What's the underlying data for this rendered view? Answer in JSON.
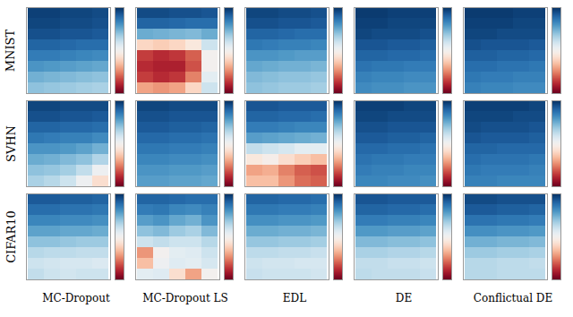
{
  "chart_data": {
    "type": "heatmap",
    "tick_labels": false,
    "rows": [
      "MNIST",
      "SVHN",
      "CIFAR10"
    ],
    "columns": [
      "MC-Dropout",
      "MC-Dropout LS",
      "EDL",
      "DE",
      "Conflictual DE"
    ],
    "colorbar": {
      "range": [
        0,
        1
      ]
    },
    "panels": [
      [
        [
          [
            0.97,
            0.97,
            0.96,
            0.96,
            0.95
          ],
          [
            0.96,
            0.96,
            0.95,
            0.95,
            0.94
          ],
          [
            0.94,
            0.94,
            0.93,
            0.93,
            0.92
          ],
          [
            0.9,
            0.9,
            0.89,
            0.88,
            0.88
          ],
          [
            0.85,
            0.85,
            0.84,
            0.83,
            0.82
          ],
          [
            0.8,
            0.79,
            0.78,
            0.77,
            0.76
          ],
          [
            0.74,
            0.73,
            0.72,
            0.71,
            0.7
          ],
          [
            0.7,
            0.69,
            0.68,
            0.67,
            0.66
          ]
        ],
        [
          [
            0.95,
            0.95,
            0.94,
            0.94,
            0.93
          ],
          [
            0.9,
            0.9,
            0.89,
            0.88,
            0.88
          ],
          [
            0.75,
            0.74,
            0.73,
            0.72,
            0.75
          ],
          [
            0.4,
            0.38,
            0.4,
            0.45,
            0.6
          ],
          [
            0.15,
            0.12,
            0.14,
            0.2,
            0.5
          ],
          [
            0.12,
            0.1,
            0.1,
            0.18,
            0.5
          ],
          [
            0.15,
            0.12,
            0.14,
            0.25,
            0.55
          ],
          [
            0.3,
            0.28,
            0.3,
            0.4,
            0.6
          ]
        ],
        [
          [
            0.96,
            0.96,
            0.95,
            0.95,
            0.94
          ],
          [
            0.94,
            0.94,
            0.93,
            0.93,
            0.92
          ],
          [
            0.9,
            0.9,
            0.89,
            0.88,
            0.88
          ],
          [
            0.86,
            0.85,
            0.84,
            0.84,
            0.83
          ],
          [
            0.8,
            0.8,
            0.79,
            0.78,
            0.78
          ],
          [
            0.76,
            0.75,
            0.74,
            0.74,
            0.73
          ],
          [
            0.72,
            0.71,
            0.7,
            0.7,
            0.69
          ],
          [
            0.7,
            0.69,
            0.68,
            0.68,
            0.67
          ]
        ],
        [
          [
            0.98,
            0.98,
            0.97,
            0.97,
            0.97
          ],
          [
            0.97,
            0.97,
            0.96,
            0.96,
            0.96
          ],
          [
            0.96,
            0.95,
            0.95,
            0.95,
            0.94
          ],
          [
            0.93,
            0.93,
            0.92,
            0.92,
            0.91
          ],
          [
            0.9,
            0.9,
            0.89,
            0.89,
            0.88
          ],
          [
            0.87,
            0.86,
            0.86,
            0.85,
            0.85
          ],
          [
            0.84,
            0.83,
            0.83,
            0.82,
            0.82
          ],
          [
            0.82,
            0.81,
            0.81,
            0.8,
            0.8
          ]
        ],
        [
          [
            0.98,
            0.98,
            0.98,
            0.97,
            0.97
          ],
          [
            0.97,
            0.97,
            0.97,
            0.96,
            0.96
          ],
          [
            0.96,
            0.96,
            0.95,
            0.95,
            0.95
          ],
          [
            0.94,
            0.93,
            0.93,
            0.93,
            0.92
          ],
          [
            0.91,
            0.91,
            0.9,
            0.9,
            0.89
          ],
          [
            0.88,
            0.88,
            0.87,
            0.87,
            0.86
          ],
          [
            0.86,
            0.85,
            0.85,
            0.84,
            0.84
          ],
          [
            0.84,
            0.83,
            0.83,
            0.82,
            0.82
          ]
        ]
      ],
      [
        [
          [
            0.96,
            0.96,
            0.95,
            0.95,
            0.95
          ],
          [
            0.94,
            0.94,
            0.93,
            0.93,
            0.92
          ],
          [
            0.9,
            0.9,
            0.89,
            0.89,
            0.88
          ],
          [
            0.86,
            0.85,
            0.84,
            0.84,
            0.82
          ],
          [
            0.8,
            0.8,
            0.79,
            0.77,
            0.74
          ],
          [
            0.75,
            0.74,
            0.72,
            0.7,
            0.65
          ],
          [
            0.7,
            0.69,
            0.67,
            0.62,
            0.52
          ],
          [
            0.66,
            0.64,
            0.6,
            0.52,
            0.42
          ]
        ],
        [
          [
            0.96,
            0.96,
            0.95,
            0.95,
            0.95
          ],
          [
            0.94,
            0.94,
            0.93,
            0.93,
            0.93
          ],
          [
            0.92,
            0.92,
            0.91,
            0.91,
            0.9
          ],
          [
            0.89,
            0.89,
            0.88,
            0.88,
            0.87
          ],
          [
            0.86,
            0.86,
            0.85,
            0.85,
            0.84
          ],
          [
            0.83,
            0.83,
            0.82,
            0.82,
            0.81
          ],
          [
            0.8,
            0.8,
            0.79,
            0.79,
            0.78
          ],
          [
            0.78,
            0.78,
            0.77,
            0.77,
            0.76
          ]
        ],
        [
          [
            0.93,
            0.93,
            0.92,
            0.92,
            0.92
          ],
          [
            0.9,
            0.9,
            0.89,
            0.89,
            0.88
          ],
          [
            0.85,
            0.85,
            0.84,
            0.83,
            0.83
          ],
          [
            0.78,
            0.77,
            0.76,
            0.75,
            0.74
          ],
          [
            0.62,
            0.6,
            0.58,
            0.55,
            0.55
          ],
          [
            0.45,
            0.48,
            0.42,
            0.38,
            0.35
          ],
          [
            0.3,
            0.32,
            0.25,
            0.2,
            0.18
          ],
          [
            0.35,
            0.35,
            0.28,
            0.22,
            0.2
          ]
        ],
        [
          [
            0.97,
            0.97,
            0.97,
            0.96,
            0.96
          ],
          [
            0.96,
            0.96,
            0.95,
            0.95,
            0.95
          ],
          [
            0.94,
            0.94,
            0.93,
            0.93,
            0.93
          ],
          [
            0.92,
            0.92,
            0.91,
            0.91,
            0.9
          ],
          [
            0.89,
            0.89,
            0.88,
            0.88,
            0.87
          ],
          [
            0.87,
            0.86,
            0.86,
            0.85,
            0.85
          ],
          [
            0.85,
            0.84,
            0.84,
            0.83,
            0.83
          ],
          [
            0.83,
            0.83,
            0.82,
            0.82,
            0.81
          ]
        ],
        [
          [
            0.97,
            0.97,
            0.97,
            0.97,
            0.96
          ],
          [
            0.96,
            0.96,
            0.96,
            0.95,
            0.95
          ],
          [
            0.95,
            0.94,
            0.94,
            0.94,
            0.93
          ],
          [
            0.93,
            0.92,
            0.92,
            0.92,
            0.91
          ],
          [
            0.9,
            0.9,
            0.89,
            0.89,
            0.89
          ],
          [
            0.88,
            0.87,
            0.87,
            0.87,
            0.86
          ],
          [
            0.86,
            0.85,
            0.85,
            0.85,
            0.84
          ],
          [
            0.84,
            0.84,
            0.83,
            0.83,
            0.83
          ]
        ]
      ],
      [
        [
          [
            0.92,
            0.92,
            0.91,
            0.91,
            0.9
          ],
          [
            0.88,
            0.88,
            0.87,
            0.87,
            0.86
          ],
          [
            0.83,
            0.83,
            0.82,
            0.82,
            0.81
          ],
          [
            0.77,
            0.77,
            0.76,
            0.76,
            0.75
          ],
          [
            0.7,
            0.7,
            0.69,
            0.68,
            0.68
          ],
          [
            0.64,
            0.63,
            0.63,
            0.62,
            0.62
          ],
          [
            0.6,
            0.59,
            0.58,
            0.58,
            0.57
          ],
          [
            0.62,
            0.6,
            0.59,
            0.6,
            0.6
          ]
        ],
        [
          [
            0.9,
            0.9,
            0.89,
            0.88,
            0.88
          ],
          [
            0.85,
            0.86,
            0.83,
            0.82,
            0.84
          ],
          [
            0.78,
            0.8,
            0.76,
            0.74,
            0.8
          ],
          [
            0.7,
            0.72,
            0.68,
            0.66,
            0.72
          ],
          [
            0.6,
            0.62,
            0.6,
            0.6,
            0.64
          ],
          [
            0.28,
            0.5,
            0.55,
            0.56,
            0.6
          ],
          [
            0.35,
            0.52,
            0.56,
            0.55,
            0.58
          ],
          [
            0.55,
            0.56,
            0.42,
            0.3,
            0.5
          ]
        ],
        [
          [
            0.9,
            0.9,
            0.89,
            0.89,
            0.88
          ],
          [
            0.86,
            0.86,
            0.85,
            0.85,
            0.84
          ],
          [
            0.81,
            0.81,
            0.8,
            0.8,
            0.79
          ],
          [
            0.75,
            0.75,
            0.74,
            0.74,
            0.73
          ],
          [
            0.69,
            0.69,
            0.68,
            0.68,
            0.67
          ],
          [
            0.63,
            0.63,
            0.62,
            0.62,
            0.61
          ],
          [
            0.6,
            0.59,
            0.59,
            0.58,
            0.58
          ],
          [
            0.61,
            0.6,
            0.6,
            0.6,
            0.59
          ]
        ],
        [
          [
            0.93,
            0.93,
            0.92,
            0.92,
            0.92
          ],
          [
            0.9,
            0.9,
            0.89,
            0.89,
            0.88
          ],
          [
            0.85,
            0.85,
            0.84,
            0.84,
            0.83
          ],
          [
            0.79,
            0.79,
            0.78,
            0.78,
            0.77
          ],
          [
            0.72,
            0.72,
            0.71,
            0.71,
            0.7
          ],
          [
            0.66,
            0.66,
            0.65,
            0.65,
            0.64
          ],
          [
            0.62,
            0.62,
            0.61,
            0.61,
            0.6
          ],
          [
            0.63,
            0.62,
            0.62,
            0.62,
            0.61
          ]
        ],
        [
          [
            0.95,
            0.95,
            0.94,
            0.94,
            0.94
          ],
          [
            0.92,
            0.92,
            0.91,
            0.91,
            0.9
          ],
          [
            0.87,
            0.87,
            0.86,
            0.86,
            0.85
          ],
          [
            0.81,
            0.81,
            0.8,
            0.8,
            0.79
          ],
          [
            0.74,
            0.74,
            0.73,
            0.73,
            0.72
          ],
          [
            0.68,
            0.68,
            0.67,
            0.67,
            0.66
          ],
          [
            0.64,
            0.64,
            0.63,
            0.63,
            0.62
          ],
          [
            0.64,
            0.64,
            0.63,
            0.63,
            0.63
          ]
        ]
      ]
    ]
  }
}
